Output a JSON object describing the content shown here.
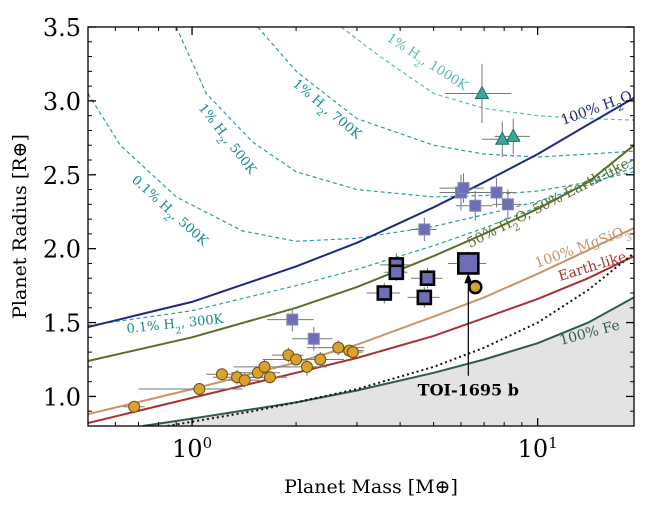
{
  "chart_data": {
    "type": "scatter",
    "title": "",
    "xlabel": "Planet Mass [M⊕]",
    "ylabel": "Planet Radius [R⊕]",
    "xscale": "log",
    "xlim": [
      0.5,
      19
    ],
    "ylim": [
      0.8,
      3.5
    ],
    "x_tick_labels": [
      {
        "value": 1,
        "label": "10",
        "sup": "0"
      },
      {
        "value": 10,
        "label": "10",
        "sup": "1"
      }
    ],
    "y_ticks": [
      1.0,
      1.5,
      2.0,
      2.5,
      3.0,
      3.5
    ],
    "y_tick_labels": [
      "1.0",
      "1.5",
      "2.0",
      "2.5",
      "3.0",
      "3.5"
    ],
    "grid": false,
    "colors": {
      "h2o_100": "#1f2a78",
      "h2o_50": "#5a6e2a",
      "mgsio3": "#c8946a",
      "earthlike": "#a83232",
      "fe": "#2e5a52",
      "h2": "#1e9a9a",
      "squares": "#6e6eb8",
      "circles": "#d9a22e",
      "triangles": "#3aa79c",
      "shade": "#e3e3e3"
    },
    "composition_curves": [
      {
        "name": "100% H2O",
        "label_parts": [
          {
            "t": "100% H"
          },
          {
            "t": "2",
            "sub": true
          },
          {
            "t": "O"
          }
        ],
        "x": [
          0.5,
          1,
          2,
          3,
          5,
          7,
          10,
          14,
          19
        ],
        "y": [
          1.47,
          1.64,
          1.88,
          2.04,
          2.28,
          2.45,
          2.64,
          2.84,
          3.02
        ]
      },
      {
        "name": "50% H2O, 50% Earth-like",
        "label_parts": [
          {
            "t": "50% H"
          },
          {
            "t": "2",
            "sub": true
          },
          {
            "t": "O, 50% Earth-like"
          }
        ],
        "x": [
          0.5,
          1,
          2,
          3,
          5,
          7,
          10,
          14,
          19
        ],
        "y": [
          1.24,
          1.4,
          1.6,
          1.74,
          1.95,
          2.1,
          2.27,
          2.45,
          2.7
        ]
      },
      {
        "name": "100% MgSiO3",
        "label_parts": [
          {
            "t": "100% MgSiO"
          },
          {
            "t": "3",
            "sub": true
          }
        ],
        "x": [
          0.5,
          1,
          2,
          3,
          5,
          7,
          10,
          14,
          19
        ],
        "y": [
          0.88,
          1.05,
          1.23,
          1.35,
          1.54,
          1.67,
          1.83,
          1.99,
          2.14
        ]
      },
      {
        "name": "Earth-like",
        "label_parts": [
          {
            "t": "Earth-like"
          }
        ],
        "x": [
          0.5,
          1,
          2,
          3,
          5,
          7,
          10,
          14,
          19
        ],
        "y": [
          0.82,
          0.99,
          1.16,
          1.26,
          1.41,
          1.53,
          1.66,
          1.8,
          1.95
        ]
      },
      {
        "name": "100% Fe",
        "label_parts": [
          {
            "t": "100% Fe"
          }
        ],
        "x": [
          0.72,
          1,
          2,
          3,
          5,
          7,
          10,
          14,
          19
        ],
        "y": [
          0.8,
          0.85,
          0.96,
          1.04,
          1.16,
          1.25,
          1.36,
          1.5,
          1.67
        ]
      }
    ],
    "dotted_curve": {
      "x": [
        0.85,
        1.5,
        2,
        3,
        5,
        7,
        10,
        14,
        19
      ],
      "y": [
        0.8,
        0.9,
        0.96,
        1.05,
        1.2,
        1.33,
        1.5,
        1.72,
        1.97
      ]
    },
    "h2_curves": [
      {
        "name": "0.1% H2, 300K",
        "label_parts": [
          {
            "t": "0.1% H"
          },
          {
            "t": "2",
            "sub": true
          },
          {
            "t": ", 300K"
          }
        ],
        "x": [
          0.5,
          1,
          2,
          3,
          5,
          7,
          10,
          14,
          19
        ],
        "y": [
          1.48,
          1.58,
          1.75,
          1.86,
          2.02,
          2.14,
          2.28,
          2.45,
          2.6
        ]
      },
      {
        "name": "0.1% H2, 500K",
        "label_parts": [
          {
            "t": "0.1% H"
          },
          {
            "t": "2",
            "sub": true
          },
          {
            "t": ", 500K"
          }
        ],
        "x": [
          0.5,
          0.62,
          0.9,
          1.4,
          2,
          3,
          5,
          7,
          10,
          14,
          19
        ],
        "y": [
          3.05,
          2.7,
          2.35,
          2.12,
          2.05,
          2.07,
          2.15,
          2.23,
          2.32,
          2.43,
          2.55
        ]
      },
      {
        "name": "1% H2, 500K",
        "label_parts": [
          {
            "t": "1% H"
          },
          {
            "t": "2",
            "sub": true
          },
          {
            "t": ", 500K"
          }
        ],
        "x": [
          0.9,
          1.1,
          1.5,
          2,
          3,
          5,
          7,
          10,
          14,
          19
        ],
        "y": [
          3.5,
          3.05,
          2.72,
          2.52,
          2.4,
          2.35,
          2.36,
          2.39,
          2.45,
          2.52
        ]
      },
      {
        "name": "1% H2, 700K",
        "label_parts": [
          {
            "t": "1% H"
          },
          {
            "t": "2",
            "sub": true
          },
          {
            "t": ", 700K"
          }
        ],
        "x": [
          1.55,
          2,
          3,
          5,
          7,
          10,
          14,
          19
        ],
        "y": [
          3.5,
          3.2,
          2.88,
          2.7,
          2.64,
          2.62,
          2.64,
          2.66
        ]
      },
      {
        "name": "1% H2, 1000K",
        "label_parts": [
          {
            "t": "1% H"
          },
          {
            "t": "2",
            "sub": true
          },
          {
            "t": ", 1000K"
          }
        ],
        "x": [
          2.7,
          3.5,
          5,
          7,
          10,
          14,
          19
        ],
        "y": [
          3.5,
          3.3,
          3.05,
          2.95,
          2.9,
          2.88,
          2.87
        ]
      }
    ],
    "circle_points": [
      {
        "x": 0.68,
        "y": 0.93,
        "xerr": 0.05,
        "yerr": 0.03
      },
      {
        "x": 1.05,
        "y": 1.05,
        "xerr": 0.35,
        "yerr": 0.03
      },
      {
        "x": 1.22,
        "y": 1.15,
        "xerr": 0.12,
        "yerr": 0.04
      },
      {
        "x": 1.35,
        "y": 1.13,
        "xerr": 0.2,
        "yerr": 0.05
      },
      {
        "x": 1.42,
        "y": 1.11,
        "xerr": 0.15,
        "yerr": 0.05
      },
      {
        "x": 1.55,
        "y": 1.16,
        "xerr": 0.25,
        "yerr": 0.04
      },
      {
        "x": 1.62,
        "y": 1.2,
        "xerr": 0.3,
        "yerr": 0.05
      },
      {
        "x": 1.68,
        "y": 1.13,
        "xerr": 0.2,
        "yerr": 0.04
      },
      {
        "x": 1.9,
        "y": 1.28,
        "xerr": 0.2,
        "yerr": 0.05
      },
      {
        "x": 2.0,
        "y": 1.25,
        "xerr": 0.4,
        "yerr": 0.04
      },
      {
        "x": 2.15,
        "y": 1.2,
        "xerr": 0.3,
        "yerr": 0.06
      },
      {
        "x": 2.35,
        "y": 1.25,
        "xerr": 0.4,
        "yerr": 0.05
      },
      {
        "x": 2.65,
        "y": 1.33,
        "xerr": 0.5,
        "yerr": 0.05
      },
      {
        "x": 2.85,
        "y": 1.31,
        "xerr": 0.3,
        "yerr": 0.04
      },
      {
        "x": 2.92,
        "y": 1.3,
        "xerr": 0.2,
        "yerr": 0.04
      },
      {
        "x": 6.6,
        "y": 1.74,
        "xerr": 0.0,
        "yerr": 0.0,
        "bold": true
      }
    ],
    "square_points": [
      {
        "x": 1.95,
        "y": 1.52,
        "xerr": 0.3,
        "yerr": 0.08,
        "size": "small"
      },
      {
        "x": 2.25,
        "y": 1.39,
        "xerr": 0.3,
        "yerr": 0.08,
        "size": "small"
      },
      {
        "x": 3.6,
        "y": 1.7,
        "xerr": 0.4,
        "yerr": 0.07,
        "size": "medium",
        "bold": true
      },
      {
        "x": 3.9,
        "y": 1.89,
        "xerr": 0.4,
        "yerr": 0.08,
        "size": "medium",
        "bold": true
      },
      {
        "x": 3.9,
        "y": 1.84,
        "xerr": 0.3,
        "yerr": 0.06,
        "size": "medium",
        "bold": true
      },
      {
        "x": 4.7,
        "y": 2.13,
        "xerr": 0.4,
        "yerr": 0.08,
        "size": "small"
      },
      {
        "x": 4.8,
        "y": 1.8,
        "xerr": 0.5,
        "yerr": 0.07,
        "size": "medium",
        "bold": true
      },
      {
        "x": 4.7,
        "y": 1.67,
        "xerr": 0.5,
        "yerr": 0.07,
        "size": "medium",
        "bold": true
      },
      {
        "x": 6.0,
        "y": 2.38,
        "xerr": 0.8,
        "yerr": 0.12,
        "size": "small"
      },
      {
        "x": 6.1,
        "y": 2.41,
        "xerr": 0.9,
        "yerr": 0.1,
        "size": "small"
      },
      {
        "x": 6.6,
        "y": 2.29,
        "xerr": 0.8,
        "yerr": 0.1,
        "size": "small"
      },
      {
        "x": 7.6,
        "y": 2.38,
        "xerr": 1.0,
        "yerr": 0.1,
        "size": "small"
      },
      {
        "x": 8.2,
        "y": 2.3,
        "xerr": 0.8,
        "yerr": 0.1,
        "size": "small"
      },
      {
        "x": 6.3,
        "y": 1.9,
        "xerr": 0.8,
        "yerr": 0.08,
        "size": "large",
        "bold": true
      }
    ],
    "triangle_points": [
      {
        "x": 6.9,
        "y": 3.05,
        "xerr": 1.5,
        "yerr": 0.2
      },
      {
        "x": 7.9,
        "y": 2.74,
        "xerr": 1.0,
        "yerr": 0.12
      },
      {
        "x": 8.5,
        "y": 2.76,
        "xerr": 1.0,
        "yerr": 0.12
      }
    ],
    "annotation": {
      "text": "TOI-1695 b",
      "x": 6.3,
      "y": 1.82,
      "text_x": 6.3,
      "text_y": 1.04
    }
  }
}
